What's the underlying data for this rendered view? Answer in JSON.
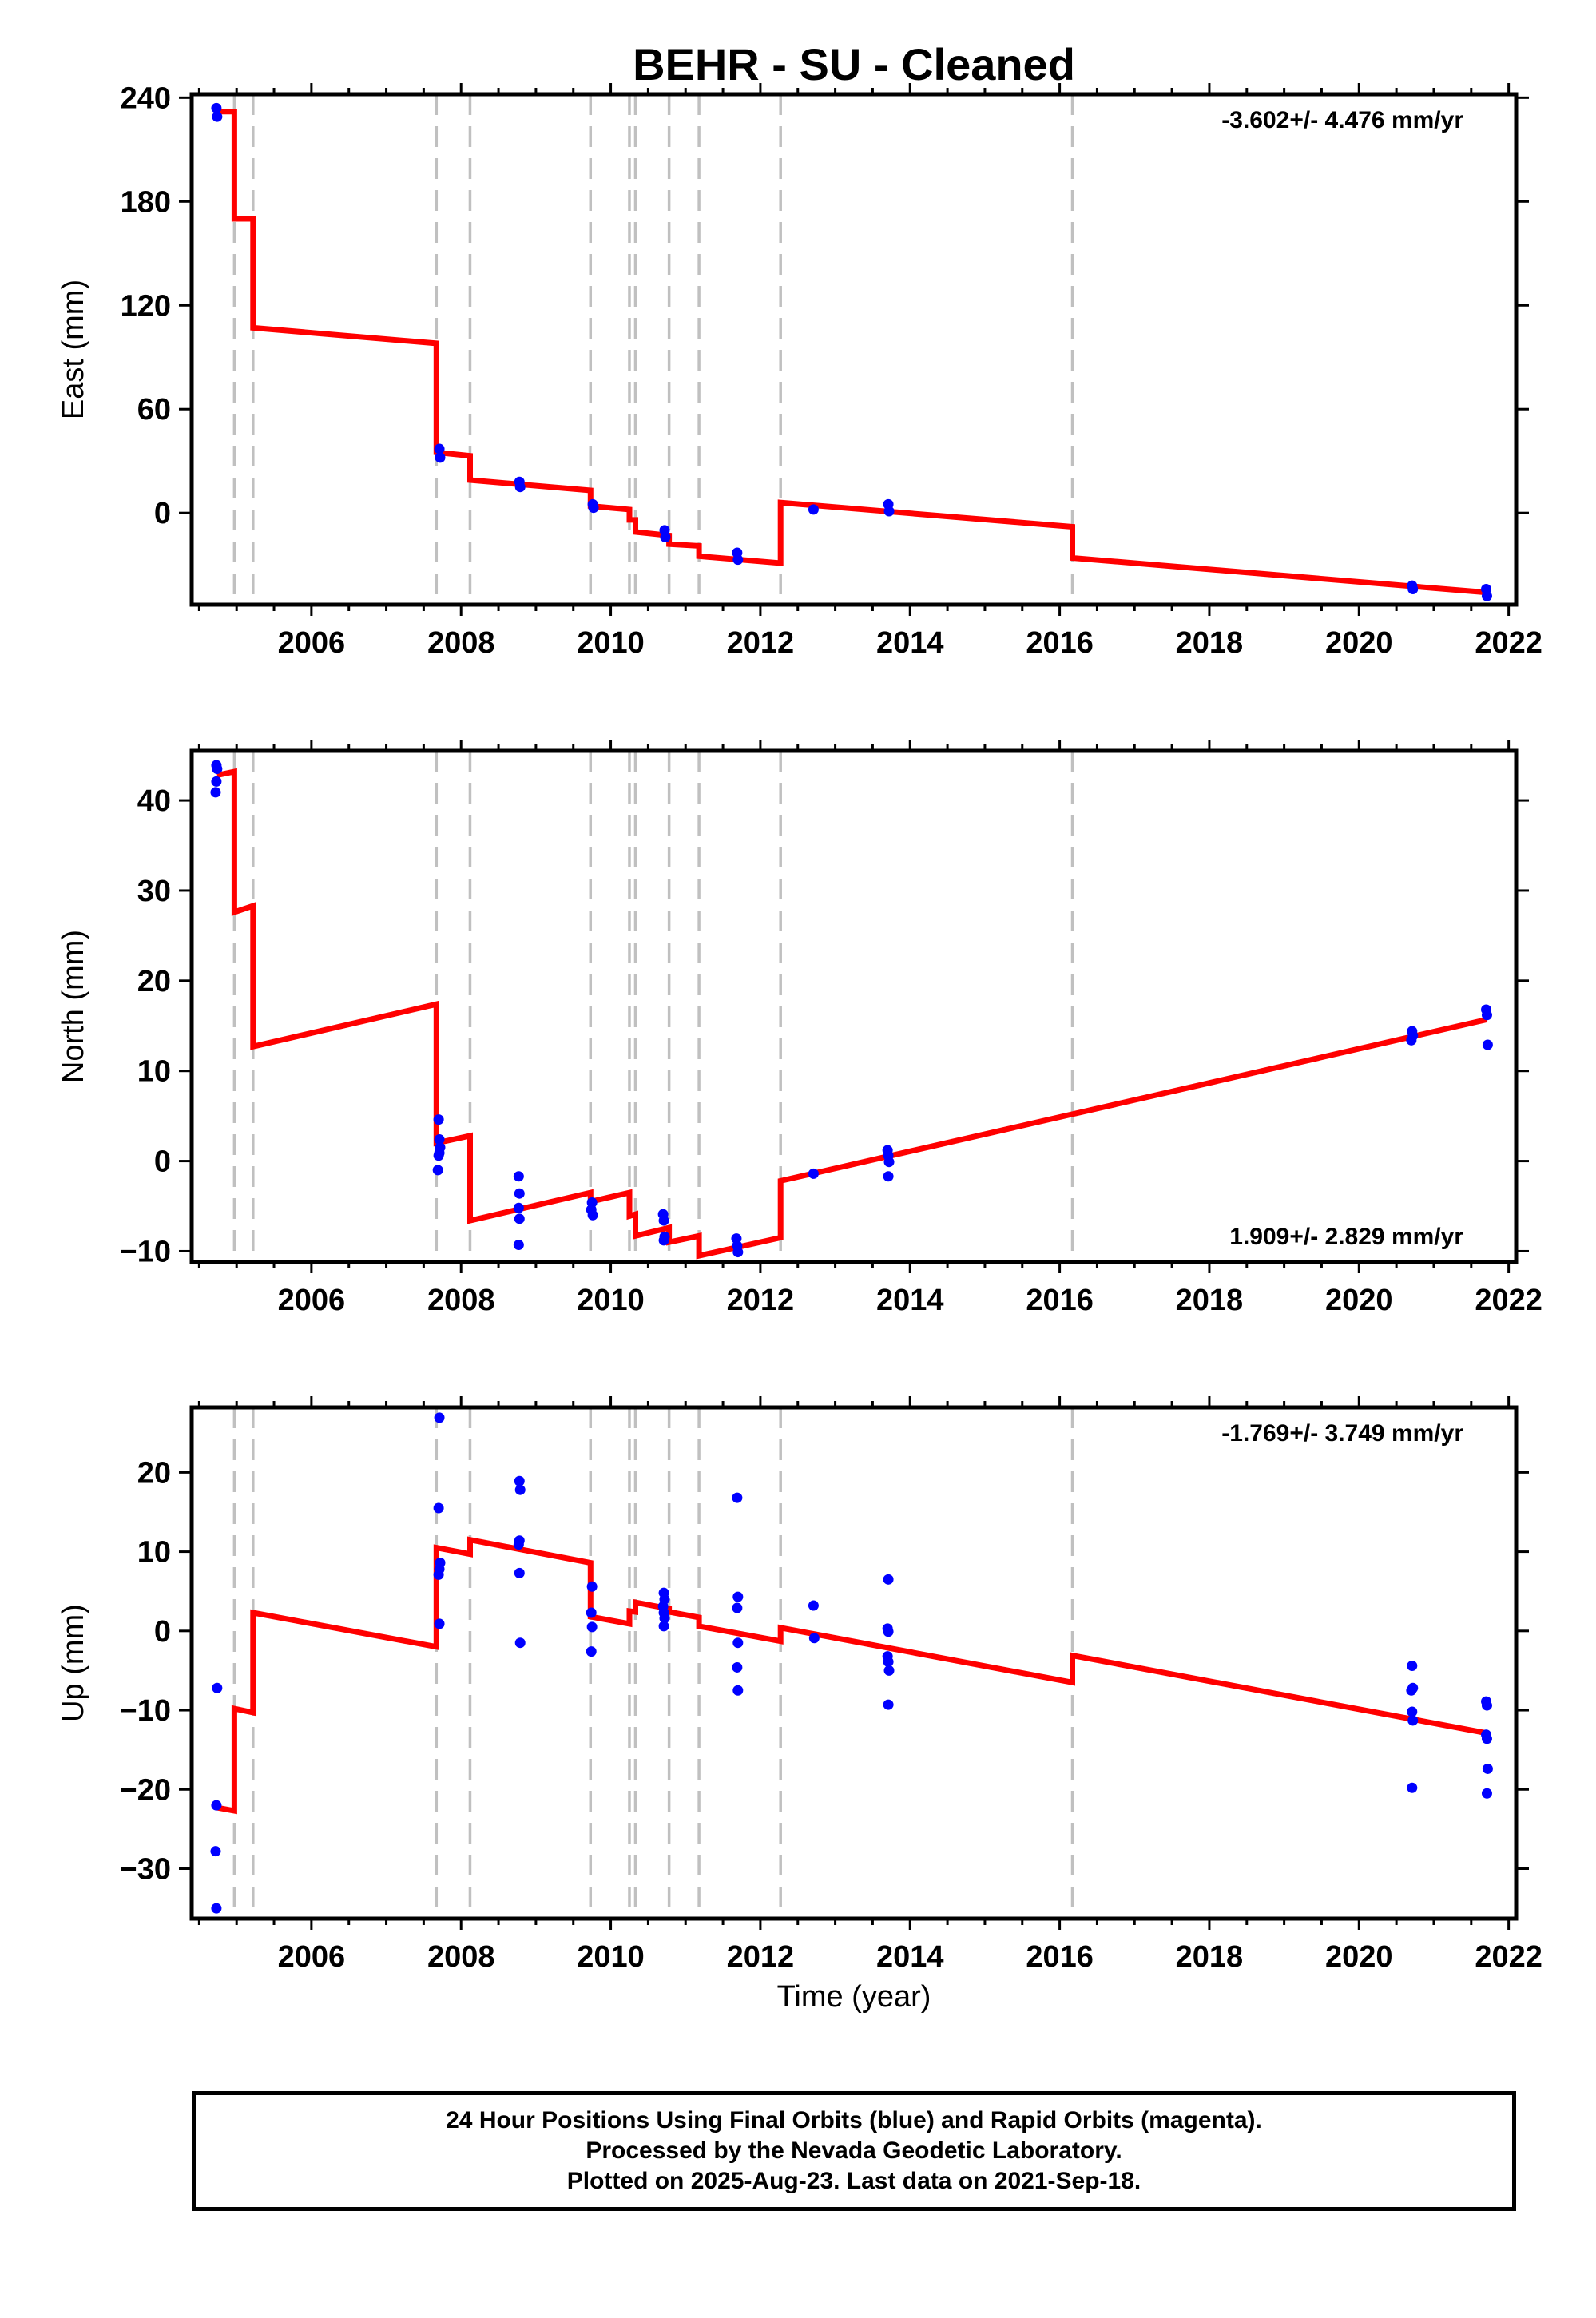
{
  "chart_data": {
    "title": "BEHR  - SU - Cleaned",
    "xlabel": "Time (year)",
    "xlim": [
      2004.4,
      2022.1
    ],
    "x_ticks": [
      2006,
      2008,
      2010,
      2012,
      2014,
      2016,
      2018,
      2020,
      2022
    ],
    "breaks": [
      2004.97,
      2005.22,
      2007.67,
      2008.12,
      2009.73,
      2010.25,
      2010.33,
      2010.78,
      2011.18,
      2012.27,
      2016.17
    ],
    "colors": {
      "data": "#0000ff",
      "model": "#ff0000",
      "breaks": "#c0c0c0",
      "frame": "#000000"
    },
    "panels": [
      {
        "type": "scatter",
        "ylabel": "East (mm)",
        "ylim": [
          -53,
          242
        ],
        "y_ticks": [
          0,
          60,
          120,
          180,
          240
        ],
        "rate": "-3.602+/- 4.476 mm/yr",
        "rate_position": "top-right",
        "points": [
          [
            2004.73,
            234
          ],
          [
            2004.74,
            229
          ],
          [
            2007.71,
            37
          ],
          [
            2007.72,
            32
          ],
          [
            2008.78,
            18
          ],
          [
            2008.79,
            15
          ],
          [
            2009.76,
            5
          ],
          [
            2009.77,
            3
          ],
          [
            2010.72,
            -10
          ],
          [
            2010.73,
            -14
          ],
          [
            2011.69,
            -23
          ],
          [
            2011.7,
            -27
          ],
          [
            2012.71,
            2
          ],
          [
            2013.71,
            5
          ],
          [
            2013.72,
            1
          ],
          [
            2020.71,
            -42
          ],
          [
            2020.72,
            -44
          ],
          [
            2021.7,
            -44
          ],
          [
            2021.71,
            -48
          ]
        ],
        "model": [
          [
            2004.74,
            232
          ],
          [
            2004.97,
            232
          ],
          [
            2004.97,
            170
          ],
          [
            2005.22,
            170
          ],
          [
            2005.22,
            107
          ],
          [
            2007.67,
            98
          ],
          [
            2007.67,
            35
          ],
          [
            2008.12,
            33
          ],
          [
            2008.12,
            19
          ],
          [
            2009.73,
            13
          ],
          [
            2009.73,
            4
          ],
          [
            2010.25,
            2
          ],
          [
            2010.25,
            -4
          ],
          [
            2010.33,
            -4
          ],
          [
            2010.33,
            -11
          ],
          [
            2010.78,
            -13
          ],
          [
            2010.78,
            -18
          ],
          [
            2011.18,
            -19
          ],
          [
            2011.18,
            -25
          ],
          [
            2012.27,
            -29
          ],
          [
            2012.27,
            6
          ],
          [
            2016.17,
            -8
          ],
          [
            2016.17,
            -26
          ],
          [
            2021.71,
            -46
          ]
        ]
      },
      {
        "type": "scatter",
        "ylabel": "North (mm)",
        "ylim": [
          -11.2,
          45.5
        ],
        "y_ticks": [
          -10,
          0,
          10,
          20,
          30,
          40
        ],
        "rate": "1.909+/- 2.829 mm/yr",
        "rate_position": "bottom-right",
        "points": [
          [
            2004.73,
            43.9
          ],
          [
            2004.74,
            43.5
          ],
          [
            2004.73,
            42.1
          ],
          [
            2004.72,
            40.9
          ],
          [
            2007.7,
            4.6
          ],
          [
            2007.71,
            2.4
          ],
          [
            2007.72,
            1.5
          ],
          [
            2007.7,
            0.6
          ],
          [
            2007.71,
            0.9
          ],
          [
            2007.69,
            -1.0
          ],
          [
            2008.77,
            -1.7
          ],
          [
            2008.78,
            -3.6
          ],
          [
            2008.77,
            -5.2
          ],
          [
            2008.78,
            -6.4
          ],
          [
            2008.77,
            -9.3
          ],
          [
            2009.75,
            -4.6
          ],
          [
            2009.74,
            -5.4
          ],
          [
            2009.76,
            -6.0
          ],
          [
            2010.7,
            -5.9
          ],
          [
            2010.71,
            -6.6
          ],
          [
            2010.72,
            -8.4
          ],
          [
            2010.71,
            -8.8
          ],
          [
            2011.68,
            -8.6
          ],
          [
            2011.69,
            -9.4
          ],
          [
            2011.7,
            -10.1
          ],
          [
            2012.71,
            -1.4
          ],
          [
            2013.7,
            1.2
          ],
          [
            2013.71,
            0.6
          ],
          [
            2013.72,
            -0.1
          ],
          [
            2013.71,
            -1.7
          ],
          [
            2020.71,
            14.4
          ],
          [
            2020.72,
            13.9
          ],
          [
            2020.7,
            13.4
          ],
          [
            2021.7,
            16.8
          ],
          [
            2021.71,
            16.2
          ],
          [
            2021.72,
            12.9
          ]
        ],
        "model": [
          [
            2004.74,
            42.8
          ],
          [
            2004.97,
            43.2
          ],
          [
            2004.97,
            27.6
          ],
          [
            2005.22,
            28.3
          ],
          [
            2005.22,
            12.7
          ],
          [
            2007.67,
            17.4
          ],
          [
            2007.67,
            2.0
          ],
          [
            2008.12,
            2.8
          ],
          [
            2008.12,
            -6.6
          ],
          [
            2009.73,
            -3.5
          ],
          [
            2009.73,
            -4.5
          ],
          [
            2010.25,
            -3.5
          ],
          [
            2010.25,
            -6.1
          ],
          [
            2010.33,
            -5.9
          ],
          [
            2010.33,
            -8.3
          ],
          [
            2010.78,
            -7.4
          ],
          [
            2010.78,
            -9.0
          ],
          [
            2011.18,
            -8.3
          ],
          [
            2011.18,
            -10.5
          ],
          [
            2012.27,
            -8.5
          ],
          [
            2012.27,
            -2.2
          ],
          [
            2016.17,
            5.2
          ],
          [
            2016.17,
            5.2
          ],
          [
            2021.71,
            15.7
          ]
        ]
      },
      {
        "type": "scatter",
        "ylabel": "Up (mm)",
        "ylim": [
          -36.3,
          28.2
        ],
        "y_ticks": [
          -30,
          -20,
          -10,
          0,
          10,
          20
        ],
        "rate": "-1.769+/- 3.749 mm/yr",
        "rate_position": "top-right",
        "points": [
          [
            2004.74,
            -7.2
          ],
          [
            2004.73,
            -22.0
          ],
          [
            2004.72,
            -27.8
          ],
          [
            2004.73,
            -35.0
          ],
          [
            2007.71,
            26.9
          ],
          [
            2007.7,
            15.5
          ],
          [
            2007.72,
            8.6
          ],
          [
            2007.71,
            7.8
          ],
          [
            2007.7,
            7.1
          ],
          [
            2007.71,
            0.9
          ],
          [
            2008.78,
            18.9
          ],
          [
            2008.79,
            17.8
          ],
          [
            2008.78,
            11.4
          ],
          [
            2008.77,
            10.9
          ],
          [
            2008.78,
            7.3
          ],
          [
            2008.79,
            -1.5
          ],
          [
            2009.75,
            5.6
          ],
          [
            2009.74,
            2.3
          ],
          [
            2009.75,
            0.5
          ],
          [
            2009.74,
            -2.6
          ],
          [
            2010.71,
            4.8
          ],
          [
            2010.72,
            4.0
          ],
          [
            2010.7,
            3.1
          ],
          [
            2010.71,
            2.3
          ],
          [
            2010.72,
            1.6
          ],
          [
            2010.71,
            0.6
          ],
          [
            2011.69,
            16.8
          ],
          [
            2011.7,
            4.3
          ],
          [
            2011.69,
            2.9
          ],
          [
            2011.7,
            -1.5
          ],
          [
            2011.69,
            -4.6
          ],
          [
            2011.7,
            -7.5
          ],
          [
            2012.71,
            3.2
          ],
          [
            2012.72,
            -0.9
          ],
          [
            2013.71,
            6.5
          ],
          [
            2013.7,
            0.3
          ],
          [
            2013.71,
            -0.1
          ],
          [
            2013.7,
            -3.2
          ],
          [
            2013.71,
            -3.9
          ],
          [
            2013.72,
            -5.0
          ],
          [
            2013.71,
            -9.3
          ],
          [
            2020.71,
            -4.4
          ],
          [
            2020.72,
            -7.2
          ],
          [
            2020.7,
            -7.5
          ],
          [
            2020.71,
            -10.2
          ],
          [
            2020.72,
            -11.3
          ],
          [
            2020.71,
            -19.8
          ],
          [
            2021.7,
            -8.9
          ],
          [
            2021.71,
            -9.4
          ],
          [
            2021.7,
            -13.1
          ],
          [
            2021.71,
            -13.6
          ],
          [
            2021.72,
            -17.4
          ],
          [
            2021.71,
            -20.5
          ]
        ],
        "model": [
          [
            2004.74,
            -22.3
          ],
          [
            2004.97,
            -22.7
          ],
          [
            2004.97,
            -9.8
          ],
          [
            2005.22,
            -10.3
          ],
          [
            2005.22,
            2.3
          ],
          [
            2007.67,
            -2.0
          ],
          [
            2007.67,
            10.5
          ],
          [
            2008.12,
            9.7
          ],
          [
            2008.12,
            11.5
          ],
          [
            2009.73,
            8.6
          ],
          [
            2009.73,
            1.8
          ],
          [
            2010.25,
            0.9
          ],
          [
            2010.25,
            2.5
          ],
          [
            2010.33,
            2.4
          ],
          [
            2010.33,
            3.6
          ],
          [
            2010.78,
            2.8
          ],
          [
            2010.78,
            2.4
          ],
          [
            2011.18,
            1.7
          ],
          [
            2011.18,
            0.6
          ],
          [
            2012.27,
            -1.3
          ],
          [
            2012.27,
            0.4
          ],
          [
            2016.17,
            -6.5
          ],
          [
            2016.17,
            -3.1
          ],
          [
            2021.71,
            -12.9
          ]
        ]
      }
    ]
  },
  "footer": {
    "line1": "24 Hour Positions Using Final Orbits (blue) and Rapid Orbits (magenta).",
    "line2": "Processed by the Nevada Geodetic Laboratory.",
    "line3": "Plotted on 2025-Aug-23. Last data on 2021-Sep-18."
  }
}
